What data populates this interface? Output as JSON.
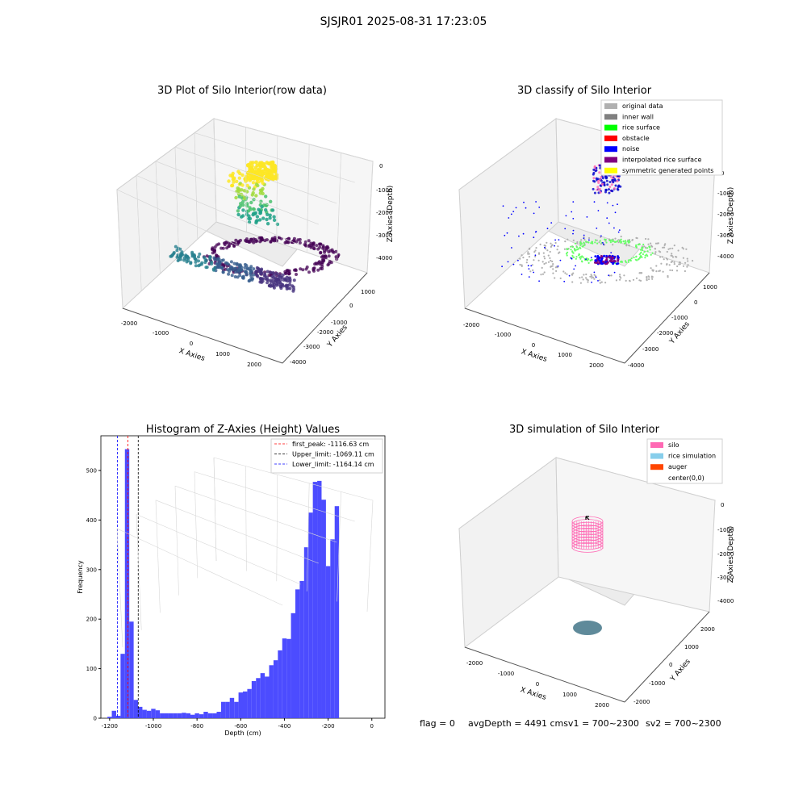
{
  "suptitle": "SJSJR01 2025-08-31 17:23:05",
  "status": {
    "flag": "flag = 0",
    "avg_depth": "avgDepth = 4491 cmsv1 = 700~2300",
    "sv2": "sv2 = 700~2300"
  },
  "chart_data": [
    {
      "type": "scatter",
      "projection": "3d",
      "title": "3D Plot of Silo Interior(row data)",
      "xlabel": "X Axies",
      "ylabel": "Y Axies",
      "zlabel": "Z Axies (Depth)",
      "xticks": [
        "-2000",
        "-1000",
        "0",
        "1000",
        "2000"
      ],
      "yticks": [
        "1000",
        "0",
        "-1000",
        "-2000",
        "-3000",
        "-4000"
      ],
      "zticks": [
        "0",
        "-1000",
        "-2000",
        "-3000",
        "-4000"
      ],
      "colormap": "viridis",
      "grid": true
    },
    {
      "type": "scatter",
      "projection": "3d",
      "title": "3D classify of Silo Interior",
      "xlabel": "X Axies",
      "ylabel": "Y Axies",
      "zlabel": "Z Axies (Depth)",
      "xticks": [
        "-2000",
        "-1000",
        "0",
        "1000",
        "2000"
      ],
      "yticks": [
        "1000",
        "0",
        "-1000",
        "-2000",
        "-3000",
        "-4000"
      ],
      "zticks": [
        "0",
        "-1000",
        "-2000",
        "-3000",
        "-4000"
      ],
      "legend_position": "top-right",
      "legend": [
        {
          "label": "original data",
          "color": "#b0b0b0"
        },
        {
          "label": "inner wall",
          "color": "#808080"
        },
        {
          "label": "rice surface",
          "color": "#00ff00"
        },
        {
          "label": "obstacle",
          "color": "#ff0000"
        },
        {
          "label": "noise",
          "color": "#0000ff"
        },
        {
          "label": "interpolated rice surface",
          "color": "#800080"
        },
        {
          "label": "symmetric generated points",
          "color": "#ffff00"
        }
      ],
      "grid": true
    },
    {
      "type": "bar",
      "subtype": "histogram",
      "title": "Histogram of Z-Axies (Height) Values",
      "xlabel": "Depth (cm)",
      "ylabel": "Frequency",
      "xlim": [
        -1240,
        60
      ],
      "ylim": [
        0,
        570
      ],
      "xticks": [
        "-1200",
        "-1000",
        "-800",
        "-600",
        "-400",
        "-200",
        "0"
      ],
      "yticks": [
        "0",
        "100",
        "200",
        "300",
        "400",
        "500"
      ],
      "bar_color": "#4c4cff",
      "bin_width": 20,
      "bins": [
        {
          "x": -1200,
          "y": 3
        },
        {
          "x": -1180,
          "y": 15
        },
        {
          "x": -1160,
          "y": 5
        },
        {
          "x": -1140,
          "y": 130
        },
        {
          "x": -1120,
          "y": 543
        },
        {
          "x": -1100,
          "y": 195
        },
        {
          "x": -1080,
          "y": 37
        },
        {
          "x": -1060,
          "y": 23
        },
        {
          "x": -1040,
          "y": 17
        },
        {
          "x": -1020,
          "y": 15
        },
        {
          "x": -1000,
          "y": 19
        },
        {
          "x": -980,
          "y": 16
        },
        {
          "x": -960,
          "y": 10
        },
        {
          "x": -940,
          "y": 10
        },
        {
          "x": -920,
          "y": 10
        },
        {
          "x": -900,
          "y": 10
        },
        {
          "x": -880,
          "y": 10
        },
        {
          "x": -860,
          "y": 11
        },
        {
          "x": -840,
          "y": 10
        },
        {
          "x": -820,
          "y": 7
        },
        {
          "x": -800,
          "y": 10
        },
        {
          "x": -780,
          "y": 8
        },
        {
          "x": -760,
          "y": 13
        },
        {
          "x": -740,
          "y": 10
        },
        {
          "x": -720,
          "y": 10
        },
        {
          "x": -700,
          "y": 13
        },
        {
          "x": -680,
          "y": 33
        },
        {
          "x": -660,
          "y": 33
        },
        {
          "x": -640,
          "y": 41
        },
        {
          "x": -620,
          "y": 33
        },
        {
          "x": -600,
          "y": 52
        },
        {
          "x": -580,
          "y": 54
        },
        {
          "x": -560,
          "y": 59
        },
        {
          "x": -540,
          "y": 75
        },
        {
          "x": -520,
          "y": 81
        },
        {
          "x": -500,
          "y": 91
        },
        {
          "x": -480,
          "y": 84
        },
        {
          "x": -460,
          "y": 107
        },
        {
          "x": -440,
          "y": 117
        },
        {
          "x": -420,
          "y": 137
        },
        {
          "x": -400,
          "y": 161
        },
        {
          "x": -380,
          "y": 160
        },
        {
          "x": -360,
          "y": 212
        },
        {
          "x": -340,
          "y": 260
        },
        {
          "x": -320,
          "y": 277
        },
        {
          "x": -300,
          "y": 345
        },
        {
          "x": -280,
          "y": 415
        },
        {
          "x": -260,
          "y": 477
        },
        {
          "x": -240,
          "y": 479
        },
        {
          "x": -220,
          "y": 441
        },
        {
          "x": -200,
          "y": 307
        },
        {
          "x": -180,
          "y": 361
        },
        {
          "x": -160,
          "y": 428
        }
      ],
      "vlines": [
        {
          "label": "first_peak: -1116.63 cm",
          "x": -1116.63,
          "color": "#ff0000"
        },
        {
          "label": "Upper_limit: -1069.11 cm",
          "x": -1069.11,
          "color": "#000000"
        },
        {
          "label": "Lower_limit: -1164.14 cm",
          "x": -1164.14,
          "color": "#0000ff"
        }
      ],
      "legend_position": "top-right",
      "grid": false
    },
    {
      "type": "scatter",
      "projection": "3d",
      "title": "3D simulation of Silo Interior",
      "xlabel": "X Axies",
      "ylabel": "Y Axies",
      "zlabel": "Z Axies (Depth)",
      "xticks": [
        "-2000",
        "-1000",
        "0",
        "1000",
        "2000"
      ],
      "yticks": [
        "2000",
        "1000",
        "0",
        "-1000",
        "-2000"
      ],
      "zticks": [
        "0",
        "-1000",
        "-2000",
        "-3000",
        "-4000"
      ],
      "legend_position": "top-right",
      "legend": [
        {
          "label": "silo",
          "color": "#ff69b4"
        },
        {
          "label": "rice simulation",
          "color": "#87ceeb"
        },
        {
          "label": "auger",
          "color": "#ff4500"
        },
        {
          "label": "center(0,0)",
          "color": "#ffffff"
        }
      ],
      "grid": true
    }
  ]
}
